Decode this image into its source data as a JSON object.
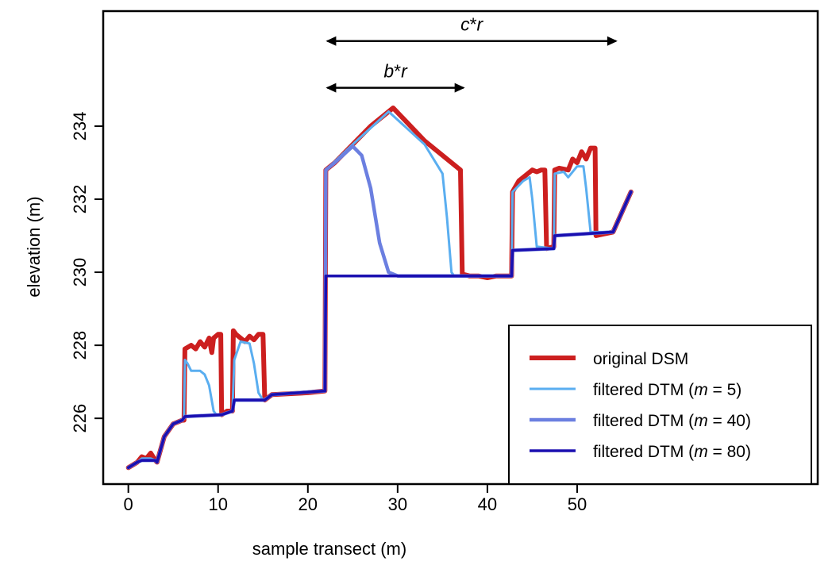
{
  "chart_data": {
    "type": "line",
    "xlabel": "sample transect (m)",
    "ylabel": "elevation (m)",
    "xlim": [
      -2.8,
      76.8
    ],
    "ylim": [
      224.2,
      237.15
    ],
    "xticks": [
      0,
      10,
      20,
      30,
      40,
      50
    ],
    "yticks": [
      226,
      228,
      230,
      232,
      234
    ],
    "grid": false,
    "legend_position": "bottom-right",
    "annotations": [
      {
        "label_var": "c",
        "label_op": "*",
        "label_var2": "r",
        "x_from": 22,
        "x_to": 54.5,
        "y": 236.33
      },
      {
        "label_var": "b",
        "label_op": "*",
        "label_var2": "r",
        "x_from": 22,
        "x_to": 37.5,
        "y": 235.05
      }
    ],
    "series": [
      {
        "name": "original DSM",
        "name_prefix": "original DSM",
        "name_m": "",
        "name_suffix": "",
        "color": "#cc1f1f",
        "width": 6,
        "x": [
          0,
          1,
          1.5,
          2,
          2.5,
          3,
          3.2,
          4,
          5,
          6,
          6.2,
          6.3,
          7,
          7.5,
          8,
          8.5,
          9,
          9.3,
          9.5,
          10,
          10.3,
          10.4,
          11,
          11.6,
          11.7,
          12,
          12.5,
          13,
          13.5,
          14,
          14.5,
          15,
          15.2,
          16,
          20,
          21.9,
          22,
          23,
          25,
          27,
          29.5,
          33,
          37,
          37.2,
          38,
          39,
          40,
          41,
          42.7,
          42.8,
          43.5,
          44.5,
          45,
          45.5,
          46,
          46.4,
          46.6,
          47.4,
          47.5,
          48,
          49,
          49.5,
          50,
          50.5,
          51,
          51.5,
          52,
          52.1,
          54,
          56
        ],
        "y": [
          224.65,
          224.8,
          224.95,
          224.9,
          225.05,
          224.85,
          224.8,
          225.5,
          225.85,
          225.95,
          225.95,
          227.9,
          228.0,
          227.9,
          228.1,
          227.95,
          228.2,
          227.8,
          228.2,
          228.3,
          228.3,
          226.1,
          226.2,
          226.2,
          228.4,
          228.3,
          228.2,
          228.1,
          228.25,
          228.15,
          228.3,
          228.3,
          226.5,
          226.65,
          226.7,
          226.75,
          232.8,
          233.0,
          233.5,
          234.0,
          234.5,
          233.6,
          232.8,
          229.95,
          229.9,
          229.9,
          229.85,
          229.9,
          229.9,
          232.2,
          232.5,
          232.7,
          232.8,
          232.75,
          232.8,
          232.8,
          230.65,
          230.7,
          232.8,
          232.85,
          232.8,
          233.1,
          233.0,
          233.3,
          233.1,
          233.4,
          233.4,
          231.0,
          231.1,
          232.2
        ]
      },
      {
        "name": "filtered DTM (m = 5)",
        "name_prefix": "filtered DTM (",
        "name_m": "m",
        "name_suffix": " = 5)",
        "color": "#5aaef0",
        "width": 3,
        "x": [
          0,
          1,
          1.5,
          2.5,
          3,
          3.2,
          4,
          5,
          6,
          6.2,
          6.3,
          6.6,
          7,
          8,
          8.5,
          9,
          9.5,
          9.8,
          10.4,
          11.6,
          11.8,
          12.5,
          13.5,
          14,
          14.5,
          15,
          16,
          21.9,
          22,
          25,
          29,
          33,
          35,
          35.5,
          36,
          36.3,
          42.7,
          42.8,
          44,
          44.7,
          45,
          45.5,
          47.4,
          47.5,
          48.5,
          49,
          50,
          50.7,
          51,
          51.5,
          54,
          56
        ],
        "y": [
          224.65,
          224.8,
          224.9,
          224.9,
          224.85,
          224.8,
          225.5,
          225.85,
          225.95,
          226.05,
          227.6,
          227.5,
          227.3,
          227.3,
          227.2,
          226.9,
          226.2,
          226.1,
          226.1,
          226.2,
          227.6,
          228.1,
          228.05,
          227.5,
          226.7,
          226.5,
          226.65,
          226.75,
          232.8,
          233.5,
          234.4,
          233.5,
          232.7,
          231.5,
          230.0,
          229.9,
          229.9,
          232.2,
          232.5,
          232.6,
          232.0,
          230.7,
          230.65,
          232.7,
          232.75,
          232.6,
          232.9,
          232.9,
          232.3,
          231.1,
          231.1,
          232.2
        ]
      },
      {
        "name": "filtered DTM (m = 40)",
        "name_prefix": "filtered DTM (",
        "name_m": "m",
        "name_suffix": " = 40)",
        "color": "#6b7fe0",
        "width": 4.5,
        "x": [
          0,
          1,
          1.5,
          3,
          3.2,
          4,
          5,
          6,
          6.3,
          10.4,
          11.6,
          11.8,
          15.2,
          16,
          21.9,
          22,
          23,
          25,
          26,
          27,
          28,
          29,
          30,
          42.7,
          42.8,
          47.4,
          47.5,
          54,
          56
        ],
        "y": [
          224.65,
          224.8,
          224.85,
          224.85,
          224.8,
          225.5,
          225.85,
          225.95,
          226.05,
          226.1,
          226.2,
          226.5,
          226.5,
          226.65,
          226.75,
          232.8,
          233.0,
          233.45,
          233.2,
          232.3,
          230.8,
          230.0,
          229.9,
          229.9,
          230.6,
          230.65,
          231.0,
          231.1,
          232.2
        ]
      },
      {
        "name": "filtered DTM (m = 80)",
        "name_prefix": "filtered DTM (",
        "name_m": "m",
        "name_suffix": " = 80)",
        "color": "#1a0fb0",
        "width": 3.5,
        "x": [
          0,
          1,
          1.5,
          3,
          3.2,
          4,
          5,
          6,
          6.3,
          10.4,
          11.6,
          11.8,
          15.2,
          16,
          21.9,
          22,
          42.7,
          42.8,
          47.4,
          47.5,
          54,
          56
        ],
        "y": [
          224.65,
          224.8,
          224.85,
          224.85,
          224.8,
          225.5,
          225.85,
          225.95,
          226.05,
          226.1,
          226.2,
          226.5,
          226.5,
          226.65,
          226.75,
          229.9,
          229.9,
          230.6,
          230.65,
          231.0,
          231.1,
          232.2
        ]
      }
    ]
  }
}
